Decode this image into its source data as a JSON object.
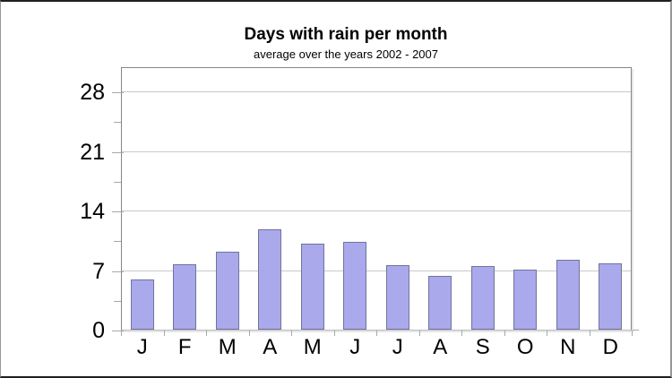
{
  "chart_data": {
    "type": "bar",
    "title": "Days with rain per month",
    "subtitle": "average over the years 2002 - 2007",
    "categories": [
      "J",
      "F",
      "M",
      "A",
      "M",
      "J",
      "J",
      "A",
      "S",
      "O",
      "N",
      "D"
    ],
    "values": [
      5.9,
      7.7,
      9.2,
      11.8,
      10.1,
      10.3,
      7.6,
      6.3,
      7.5,
      7.0,
      8.2,
      7.8
    ],
    "xlabel": "",
    "ylabel": "",
    "yticks": [
      0,
      7,
      14,
      21,
      28
    ],
    "yticks_minor": [
      3.5,
      10.5,
      17.5,
      24.5
    ],
    "ylim": [
      0,
      30.9
    ],
    "grid": "horizontal-on",
    "legend": "none",
    "colors": {
      "bar_fill": "#a9a9ec",
      "bar_border": "#73739e",
      "gridline": "#c9c9c9",
      "plot_border": "#868686",
      "tick": "#a8a8a8",
      "text": "#000000",
      "background": "#ffffff"
    }
  }
}
